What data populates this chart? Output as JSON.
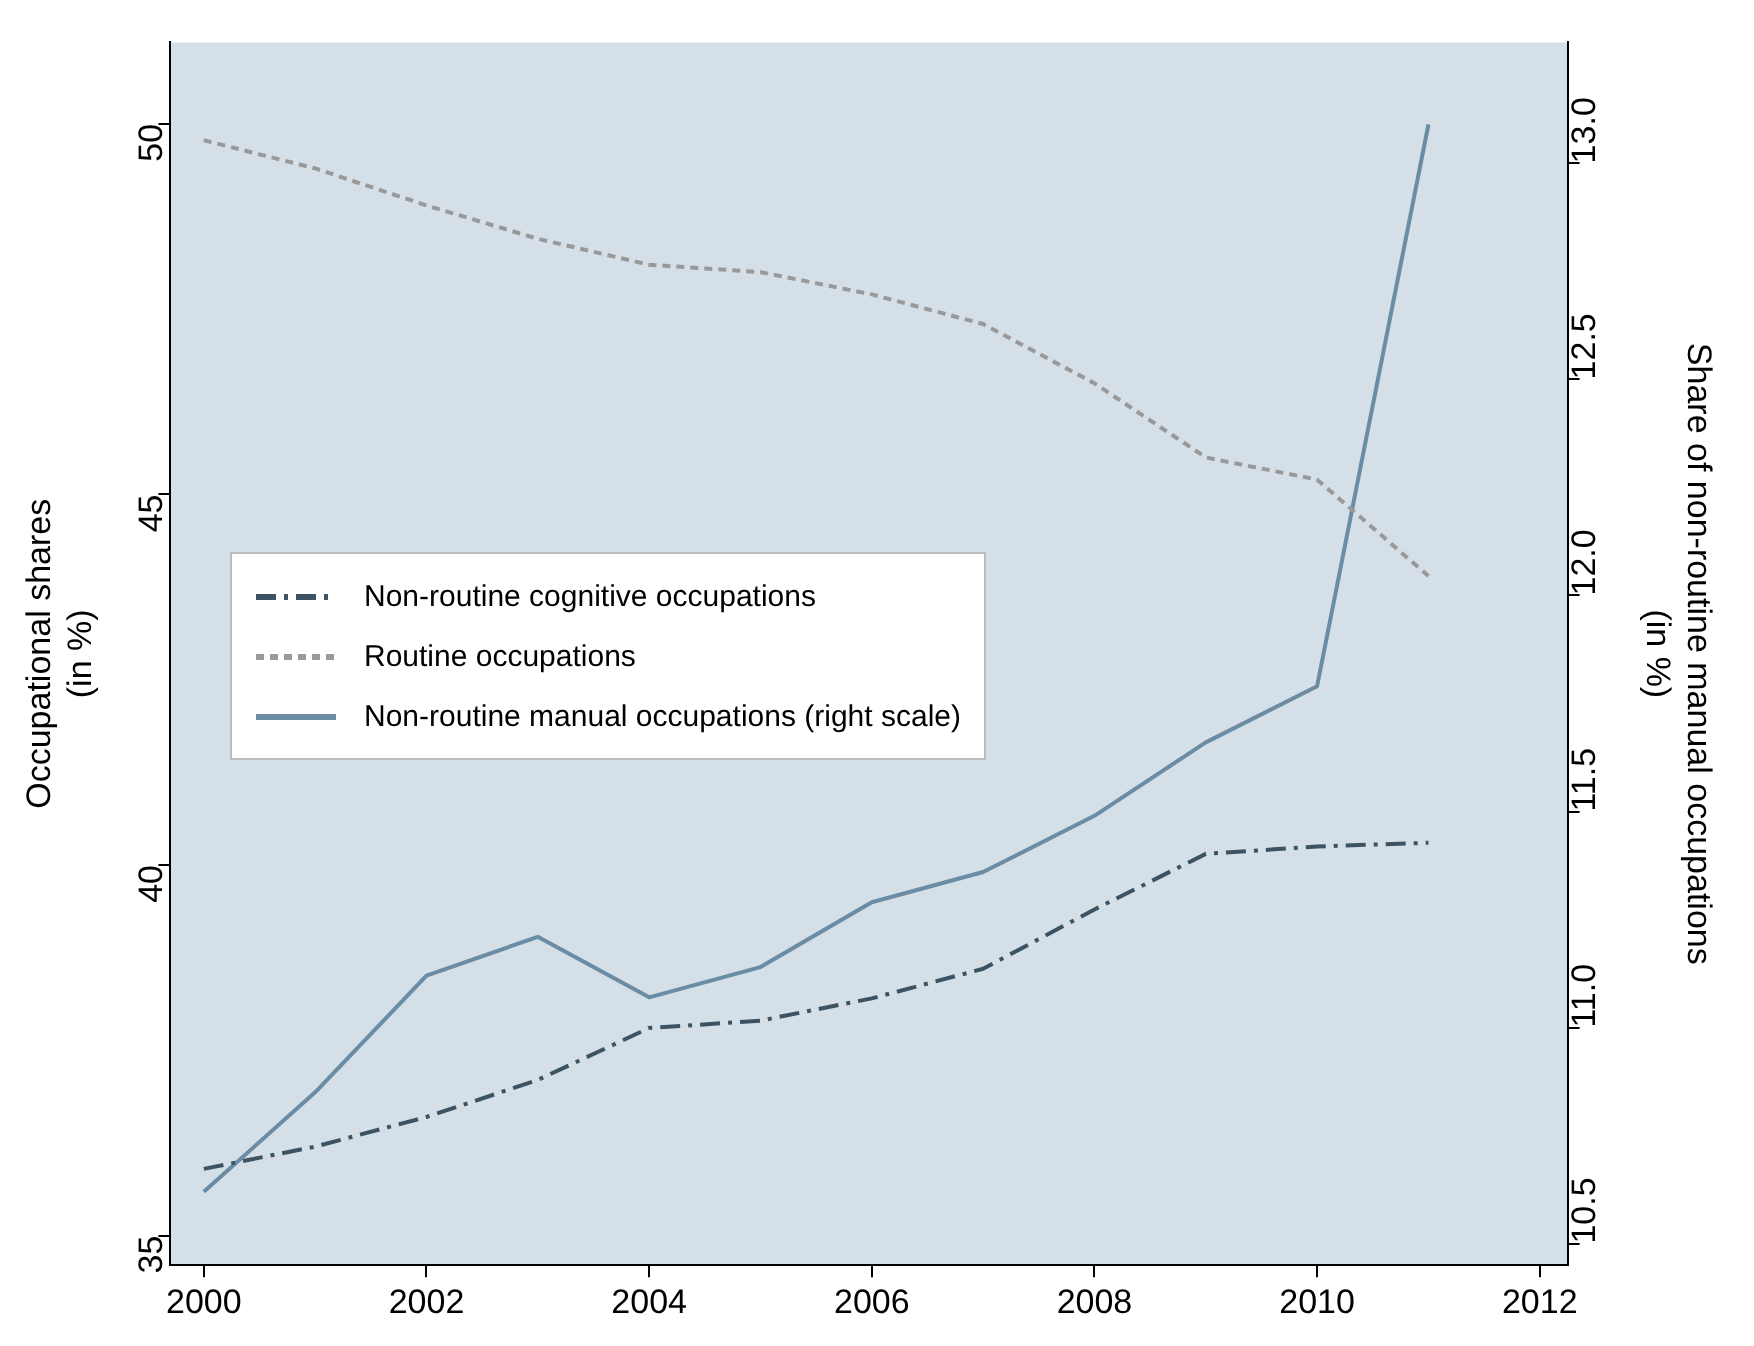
{
  "chart_data": {
    "type": "line",
    "ylabel": "Occupational shares\n(in %)",
    "y2label": "Share of non-routine manual occupations\n(in %)",
    "x": [
      2000,
      2001,
      2002,
      2003,
      2004,
      2005,
      2006,
      2007,
      2008,
      2009,
      2010,
      2011
    ],
    "xlim": [
      1999.7,
      2012.25
    ],
    "xticks": [
      2000,
      2002,
      2004,
      2006,
      2008,
      2010,
      2012
    ],
    "ylim": [
      34.6,
      51.1
    ],
    "yticks": [
      35,
      40,
      45,
      50
    ],
    "y2lim": [
      10.45,
      13.28
    ],
    "y2ticks": [
      {
        "value": 10.5,
        "label": "10.5"
      },
      {
        "value": 11,
        "label": "11.0"
      },
      {
        "value": 11.5,
        "label": "11.5"
      },
      {
        "value": 12,
        "label": "12.0"
      },
      {
        "value": 12.5,
        "label": "12.5"
      },
      {
        "value": 13,
        "label": "13.0"
      }
    ],
    "grid": false,
    "legend": "left",
    "marker": "none",
    "series": [
      {
        "name": "Non-routine cognitive occupations",
        "color": "#3c5364",
        "line_style": "dashed",
        "values": [
          35.9,
          36.2,
          36.6,
          37.1,
          37.8,
          37.9,
          38.2,
          38.6,
          39.4,
          40.15,
          40.25,
          40.3
        ]
      },
      {
        "name": "Routine occupations",
        "color": "#999999",
        "line_style": "dotted",
        "values": [
          49.78,
          49.4,
          48.9,
          48.45,
          48.1,
          48.0,
          47.7,
          47.3,
          46.5,
          45.5,
          45.2,
          43.9
        ]
      },
      {
        "name": "Non-routine manual occupations (right scale)",
        "color": "#6a8ca5",
        "line_style": "solid",
        "axis": "y2",
        "values": [
          10.62,
          10.85,
          11.12,
          11.21,
          11.07,
          11.14,
          11.29,
          11.36,
          11.49,
          11.66,
          11.79,
          13.09
        ]
      }
    ]
  }
}
